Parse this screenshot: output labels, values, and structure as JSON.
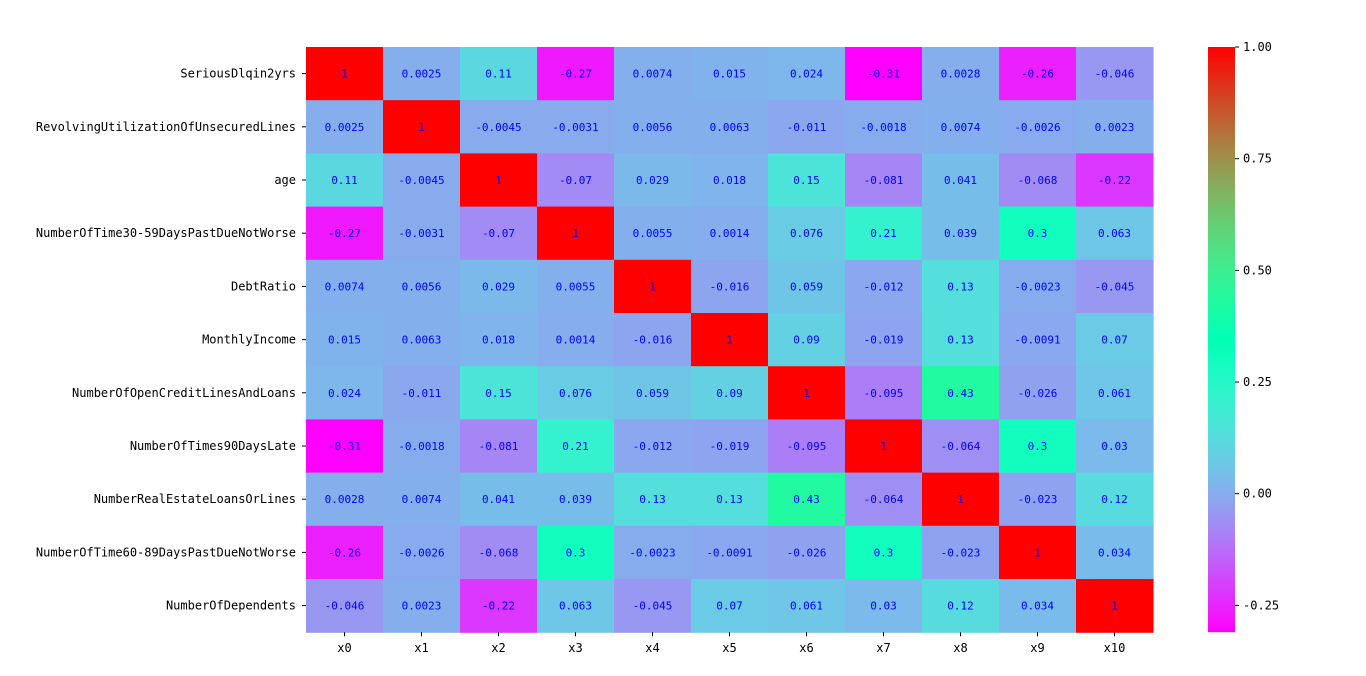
{
  "chart_data": {
    "type": "heatmap",
    "title": "",
    "xlabel": "",
    "ylabel": "",
    "x_labels": [
      "x0",
      "x1",
      "x2",
      "x3",
      "x4",
      "x5",
      "x6",
      "x7",
      "x8",
      "x9",
      "x10"
    ],
    "y_labels": [
      "SeriousDlqin2yrs",
      "RevolvingUtilizationOfUnsecuredLines",
      "age",
      "NumberOfTime30-59DaysPastDueNotWorse",
      "DebtRatio",
      "MonthlyIncome",
      "NumberOfOpenCreditLinesAndLoans",
      "NumberOfTimes90DaysLate",
      "NumberRealEstateLoansOrLines",
      "NumberOfTime60-89DaysPastDueNotWorse",
      "NumberOfDependents"
    ],
    "values": [
      [
        1,
        0.0025,
        0.11,
        -0.27,
        0.0074,
        0.015,
        0.024,
        -0.31,
        0.0028,
        -0.26,
        -0.046
      ],
      [
        0.0025,
        1,
        -0.0045,
        -0.0031,
        0.0056,
        0.0063,
        -0.011,
        -0.0018,
        0.0074,
        -0.0026,
        0.0023
      ],
      [
        0.11,
        -0.0045,
        1,
        -0.07,
        0.029,
        0.018,
        0.15,
        -0.081,
        0.041,
        -0.068,
        -0.22
      ],
      [
        -0.27,
        -0.0031,
        -0.07,
        1,
        0.0055,
        0.0014,
        0.076,
        0.21,
        0.039,
        0.3,
        0.063
      ],
      [
        0.0074,
        0.0056,
        0.029,
        0.0055,
        1,
        -0.016,
        0.059,
        -0.012,
        0.13,
        -0.0023,
        -0.045
      ],
      [
        0.015,
        0.0063,
        0.018,
        0.0014,
        -0.016,
        1,
        0.09,
        -0.019,
        0.13,
        -0.0091,
        0.07
      ],
      [
        0.024,
        -0.011,
        0.15,
        0.076,
        0.059,
        0.09,
        1,
        -0.095,
        0.43,
        -0.026,
        0.061
      ],
      [
        -0.31,
        -0.0018,
        -0.081,
        0.21,
        -0.012,
        -0.019,
        -0.095,
        1,
        -0.064,
        0.3,
        0.03
      ],
      [
        0.0028,
        0.0074,
        0.041,
        0.039,
        0.13,
        0.13,
        0.43,
        -0.064,
        1,
        -0.023,
        0.12
      ],
      [
        -0.26,
        -0.0026,
        -0.068,
        0.3,
        -0.0023,
        -0.0091,
        -0.026,
        0.3,
        -0.023,
        1,
        0.034
      ],
      [
        -0.046,
        0.0023,
        -0.22,
        0.063,
        -0.045,
        0.07,
        0.061,
        0.03,
        0.12,
        0.034,
        1
      ]
    ],
    "cell_labels": [
      [
        "1",
        "0.0025",
        "0.11",
        "-0.27",
        "0.0074",
        "0.015",
        "0.024",
        "-0.31",
        "0.0028",
        "-0.26",
        "-0.046"
      ],
      [
        "0.0025",
        "1",
        "-0.0045",
        "-0.0031",
        "0.0056",
        "0.0063",
        "-0.011",
        "-0.0018",
        "0.0074",
        "-0.0026",
        "0.0023"
      ],
      [
        "0.11",
        "-0.0045",
        "1",
        "-0.07",
        "0.029",
        "0.018",
        "0.15",
        "-0.081",
        "0.041",
        "-0.068",
        "-0.22"
      ],
      [
        "-0.27",
        "-0.0031",
        "-0.07",
        "1",
        "0.0055",
        "0.0014",
        "0.076",
        "0.21",
        "0.039",
        "0.3",
        "0.063"
      ],
      [
        "0.0074",
        "0.0056",
        "0.029",
        "0.0055",
        "1",
        "-0.016",
        "0.059",
        "-0.012",
        "0.13",
        "-0.0023",
        "-0.045"
      ],
      [
        "0.015",
        "0.0063",
        "0.018",
        "0.0014",
        "-0.016",
        "1",
        "0.09",
        "-0.019",
        "0.13",
        "-0.0091",
        "0.07"
      ],
      [
        "0.024",
        "-0.011",
        "0.15",
        "0.076",
        "0.059",
        "0.09",
        "1",
        "-0.095",
        "0.43",
        "-0.026",
        "0.061"
      ],
      [
        "-0.31",
        "-0.0018",
        "-0.081",
        "0.21",
        "-0.012",
        "-0.019",
        "-0.095",
        "1",
        "-0.064",
        "0.3",
        "0.03"
      ],
      [
        "0.0028",
        "0.0074",
        "0.041",
        "0.039",
        "0.13",
        "0.13",
        "0.43",
        "-0.064",
        "1",
        "-0.023",
        "0.12"
      ],
      [
        "-0.26",
        "-0.0026",
        "-0.068",
        "0.3",
        "-0.0023",
        "-0.0091",
        "-0.026",
        "0.3",
        "-0.023",
        "1",
        "0.034"
      ],
      [
        "-0.046",
        "0.0023",
        "-0.22",
        "0.063",
        "-0.045",
        "0.07",
        "0.061",
        "0.03",
        "0.12",
        "0.034",
        "1"
      ]
    ],
    "colorscale": "rainbow",
    "vmin": -0.31,
    "vmax": 1.0,
    "colorbar_ticks": [
      1.0,
      0.75,
      0.5,
      0.25,
      0.0,
      -0.25
    ],
    "colorbar_tick_labels": [
      "1.00",
      "0.75",
      "0.50",
      "0.25",
      "0.00",
      "-0.25"
    ],
    "annotation_color": "#0000ff",
    "grid": false,
    "legend": "colorbar-right"
  }
}
